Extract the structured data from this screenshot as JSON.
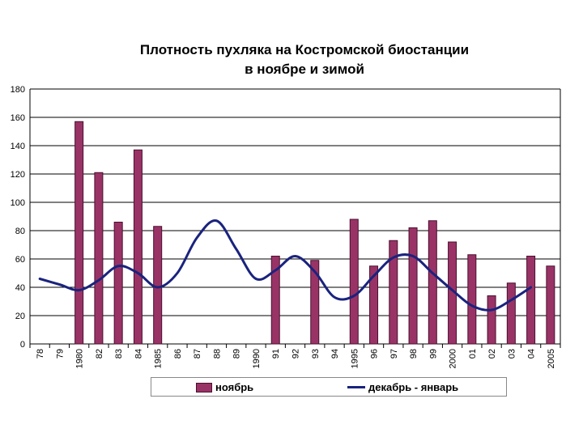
{
  "chart_data": {
    "type": "bar+line",
    "title_line1": "Плотность пухляка на Костромской биостанции",
    "title_line2": "в ноябре и зимой",
    "categories": [
      "78",
      "79",
      "1980",
      "82",
      "83",
      "84",
      "1985",
      "86",
      "87",
      "88",
      "89",
      "1990",
      "91",
      "92",
      "93",
      "94",
      "1995",
      "96",
      "97",
      "98",
      "99",
      "2000",
      "01",
      "02",
      "03",
      "04",
      "2005"
    ],
    "ylim": [
      0,
      180
    ],
    "yticks": [
      0,
      20,
      40,
      60,
      80,
      100,
      120,
      140,
      160,
      180
    ],
    "grid": true,
    "legend_position": "bottom",
    "series": [
      {
        "name": "ноябрь",
        "type": "bar",
        "color": "#993366",
        "values": [
          null,
          null,
          157,
          121,
          86,
          137,
          83,
          null,
          null,
          null,
          null,
          null,
          62,
          null,
          59,
          null,
          88,
          55,
          73,
          82,
          87,
          72,
          63,
          34,
          43,
          62,
          55
        ]
      },
      {
        "name": "декабрь - январь",
        "type": "line",
        "color": "#1a237e",
        "values": [
          46,
          42,
          38,
          45,
          55,
          50,
          40,
          50,
          75,
          87,
          67,
          46,
          52,
          62,
          51,
          33,
          34,
          48,
          61,
          62,
          50,
          38,
          27,
          24,
          31,
          40,
          null
        ]
      }
    ]
  }
}
